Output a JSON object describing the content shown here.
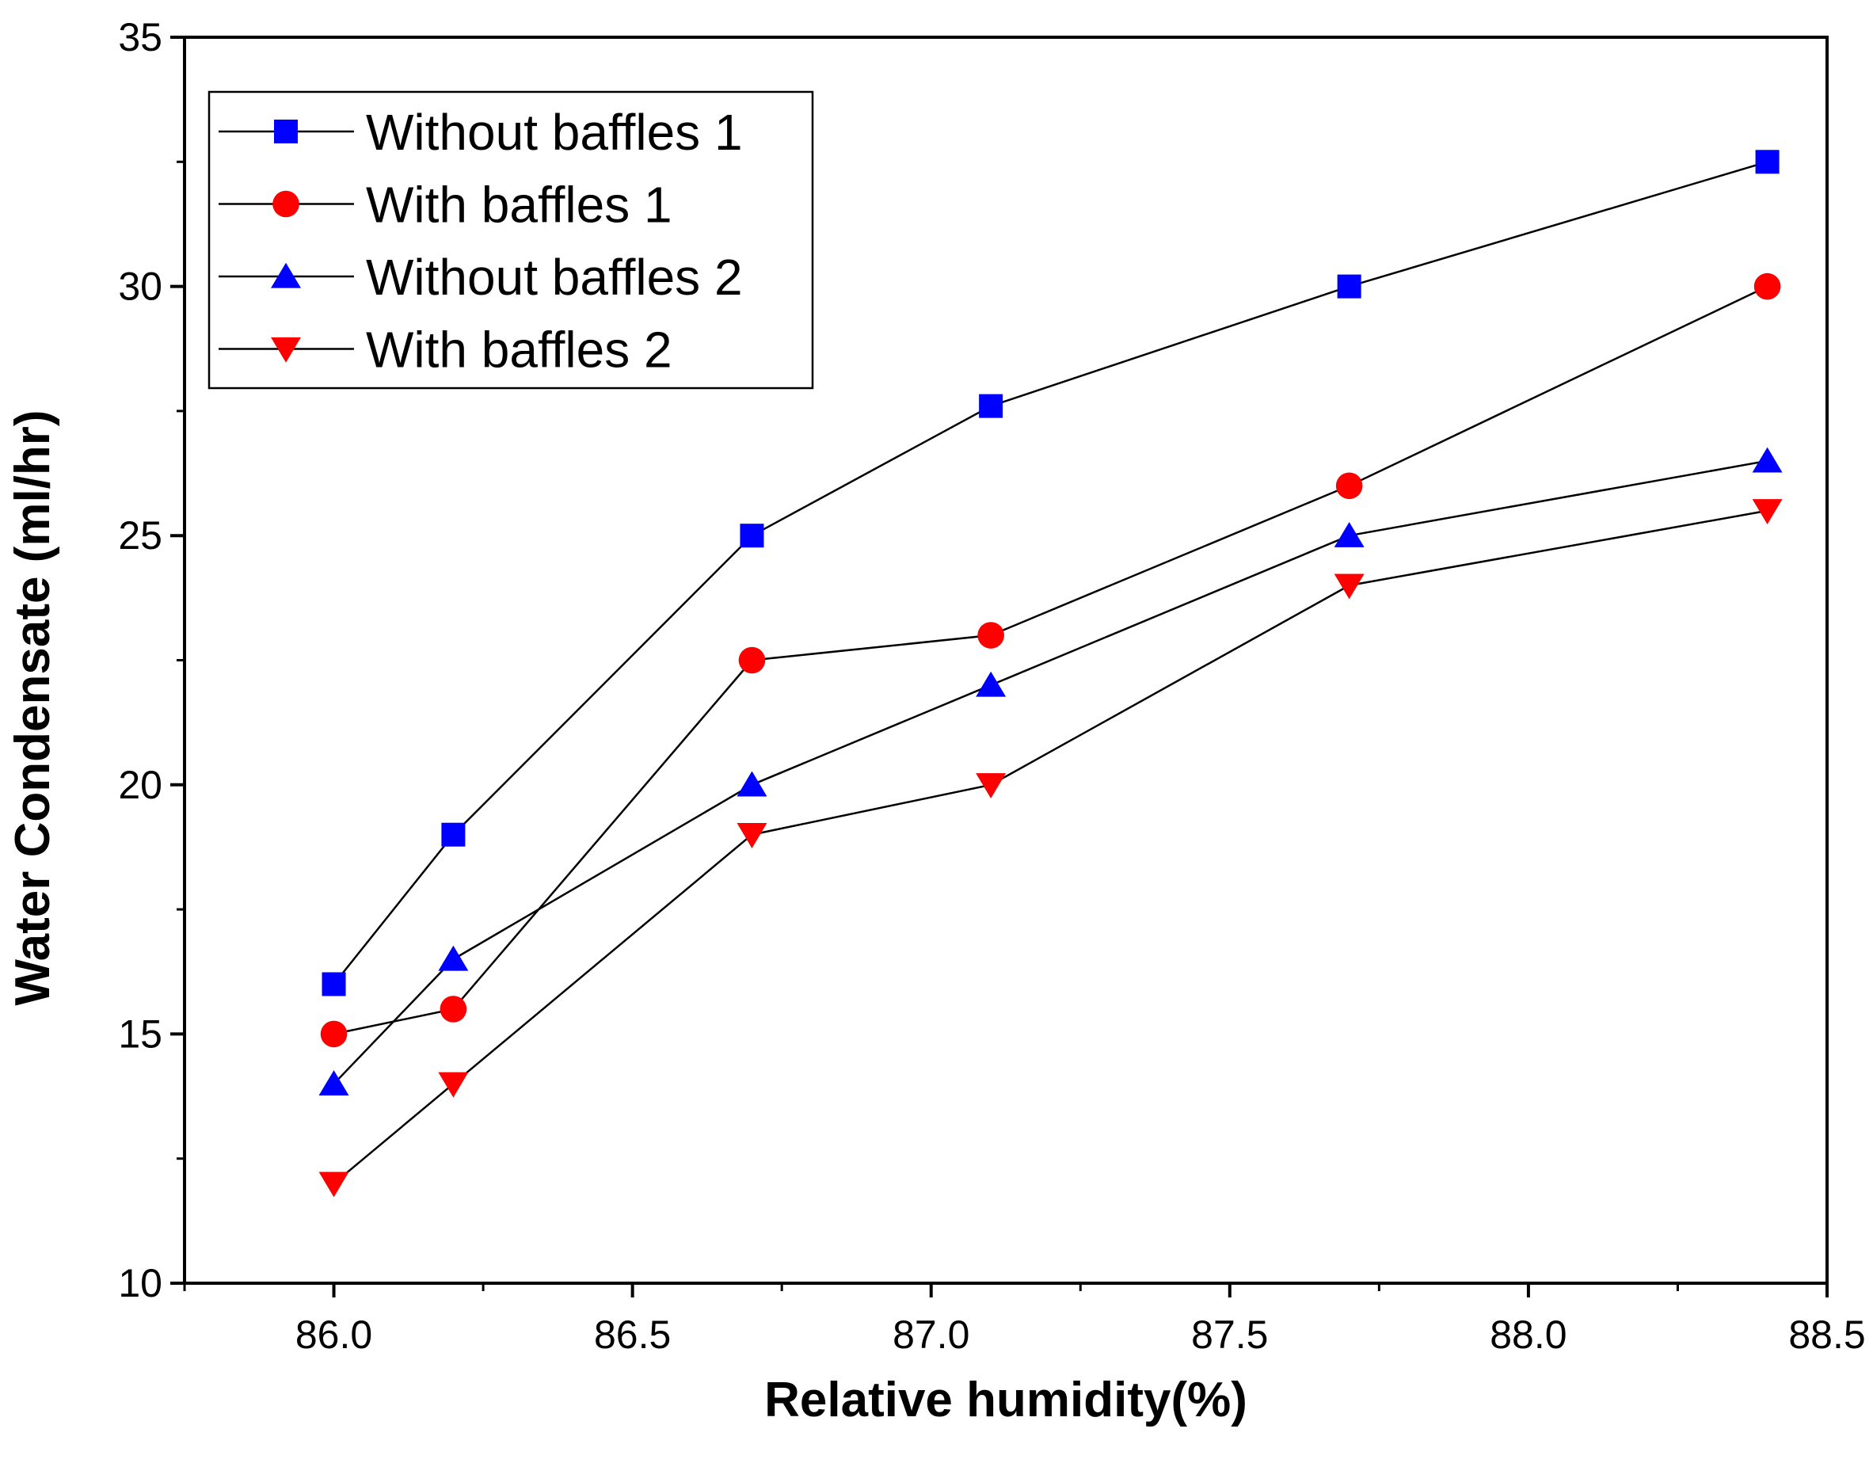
{
  "chart_data": {
    "type": "line",
    "title": "",
    "xlabel": "Relative humidity(%)",
    "ylabel": "Water Condensate (ml/hr)",
    "xlim": [
      85.75,
      88.5
    ],
    "ylim": [
      10,
      35
    ],
    "xticks": [
      86.0,
      86.5,
      87.0,
      87.5,
      88.0,
      88.5
    ],
    "xtick_labels": [
      "86.0",
      "86.5",
      "87.0",
      "87.5",
      "88.0",
      "88.5"
    ],
    "yticks": [
      10,
      15,
      20,
      25,
      30,
      35
    ],
    "ytick_labels": [
      "10",
      "15",
      "20",
      "25",
      "30",
      "35"
    ],
    "grid": false,
    "legend_position": "top-left",
    "x": [
      86.0,
      86.2,
      86.7,
      87.1,
      87.7,
      88.4
    ],
    "series": [
      {
        "name": "Without baffles 1",
        "marker": "square",
        "color": "#0000ff",
        "values": [
          16,
          19,
          25,
          27.6,
          30,
          32.5
        ]
      },
      {
        "name": "With baffles 1",
        "marker": "circle",
        "color": "#ff0000",
        "values": [
          15,
          15.5,
          22.5,
          23,
          26,
          30
        ]
      },
      {
        "name": "Without baffles 2",
        "marker": "triangle-up",
        "color": "#0000ff",
        "values": [
          14,
          16.5,
          20,
          22,
          25,
          26.5
        ]
      },
      {
        "name": "With baffles 2",
        "marker": "triangle-down",
        "color": "#ff0000",
        "values": [
          12,
          14,
          19,
          20,
          24,
          25.5
        ]
      }
    ]
  }
}
